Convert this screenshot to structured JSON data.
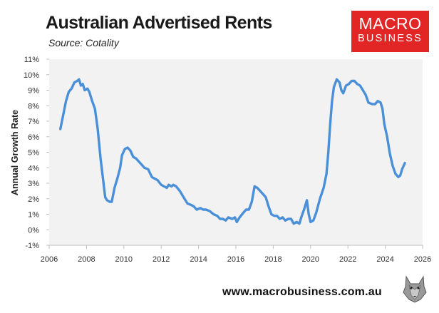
{
  "header": {
    "title": "Australian Advertised Rents",
    "source": "Source: Cotality"
  },
  "logo": {
    "line1": "MACRO",
    "line2": "BUSINESS",
    "color": "#e22626"
  },
  "footer": {
    "url": "www.macrobusiness.com.au",
    "emblem": "wolf-emblem-icon"
  },
  "colors": {
    "line": "#4a90d9",
    "plot_background": "#f2f2f2",
    "accent": "#e22626"
  },
  "chart_data": {
    "type": "line",
    "ylabel": "Annual Growth Rate",
    "xlim": [
      2006,
      2026
    ],
    "ylim": [
      -1,
      11
    ],
    "grid": false,
    "legend": "none",
    "x_ticks": [
      2006,
      2008,
      2010,
      2012,
      2014,
      2016,
      2018,
      2020,
      2022,
      2024,
      2026
    ],
    "x_tick_labels": [
      "2006",
      "2008",
      "2010",
      "2012",
      "2014",
      "2016",
      "2018",
      "2020",
      "2022",
      "2024",
      "2026"
    ],
    "y_ticks": [
      -1,
      0,
      1,
      2,
      3,
      4,
      5,
      6,
      7,
      8,
      9,
      10,
      11
    ],
    "y_tick_labels": [
      "-1%",
      "0%",
      "1%",
      "2%",
      "3%",
      "4%",
      "5%",
      "6%",
      "7%",
      "8%",
      "9%",
      "10%",
      "11%"
    ],
    "series": [
      {
        "values": [
          [
            2006.6,
            6.5
          ],
          [
            2006.75,
            7.4
          ],
          [
            2006.9,
            8.3
          ],
          [
            2007.05,
            8.9
          ],
          [
            2007.2,
            9.1
          ],
          [
            2007.35,
            9.5
          ],
          [
            2007.5,
            9.6
          ],
          [
            2007.6,
            9.7
          ],
          [
            2007.7,
            9.3
          ],
          [
            2007.8,
            9.4
          ],
          [
            2007.9,
            9.0
          ],
          [
            2008.05,
            9.1
          ],
          [
            2008.15,
            8.9
          ],
          [
            2008.3,
            8.3
          ],
          [
            2008.45,
            7.8
          ],
          [
            2008.6,
            6.5
          ],
          [
            2008.75,
            4.6
          ],
          [
            2008.9,
            3.1
          ],
          [
            2009.0,
            2.1
          ],
          [
            2009.1,
            1.9
          ],
          [
            2009.25,
            1.8
          ],
          [
            2009.35,
            1.8
          ],
          [
            2009.5,
            2.7
          ],
          [
            2009.65,
            3.3
          ],
          [
            2009.8,
            4.0
          ],
          [
            2009.9,
            4.8
          ],
          [
            2010.05,
            5.2
          ],
          [
            2010.2,
            5.3
          ],
          [
            2010.35,
            5.1
          ],
          [
            2010.5,
            4.7
          ],
          [
            2010.65,
            4.6
          ],
          [
            2010.8,
            4.4
          ],
          [
            2010.95,
            4.2
          ],
          [
            2011.1,
            4.0
          ],
          [
            2011.3,
            3.9
          ],
          [
            2011.5,
            3.4
          ],
          [
            2011.65,
            3.3
          ],
          [
            2011.8,
            3.2
          ],
          [
            2012.0,
            2.9
          ],
          [
            2012.15,
            2.8
          ],
          [
            2012.3,
            2.7
          ],
          [
            2012.4,
            2.9
          ],
          [
            2012.55,
            2.8
          ],
          [
            2012.65,
            2.9
          ],
          [
            2012.8,
            2.8
          ],
          [
            2013.0,
            2.5
          ],
          [
            2013.2,
            2.1
          ],
          [
            2013.4,
            1.7
          ],
          [
            2013.6,
            1.6
          ],
          [
            2013.75,
            1.5
          ],
          [
            2013.9,
            1.3
          ],
          [
            2014.1,
            1.4
          ],
          [
            2014.25,
            1.3
          ],
          [
            2014.4,
            1.3
          ],
          [
            2014.6,
            1.2
          ],
          [
            2014.8,
            1.0
          ],
          [
            2015.0,
            0.9
          ],
          [
            2015.15,
            0.7
          ],
          [
            2015.3,
            0.7
          ],
          [
            2015.45,
            0.6
          ],
          [
            2015.6,
            0.8
          ],
          [
            2015.8,
            0.7
          ],
          [
            2015.95,
            0.8
          ],
          [
            2016.05,
            0.5
          ],
          [
            2016.2,
            0.8
          ],
          [
            2016.4,
            1.1
          ],
          [
            2016.55,
            1.3
          ],
          [
            2016.7,
            1.3
          ],
          [
            2016.85,
            1.8
          ],
          [
            2017.0,
            2.8
          ],
          [
            2017.15,
            2.7
          ],
          [
            2017.3,
            2.5
          ],
          [
            2017.45,
            2.3
          ],
          [
            2017.6,
            2.1
          ],
          [
            2017.75,
            1.5
          ],
          [
            2017.9,
            1.0
          ],
          [
            2018.05,
            0.9
          ],
          [
            2018.2,
            0.9
          ],
          [
            2018.35,
            0.7
          ],
          [
            2018.5,
            0.8
          ],
          [
            2018.65,
            0.6
          ],
          [
            2018.8,
            0.7
          ],
          [
            2018.95,
            0.7
          ],
          [
            2019.1,
            0.4
          ],
          [
            2019.25,
            0.5
          ],
          [
            2019.4,
            0.4
          ],
          [
            2019.5,
            0.8
          ],
          [
            2019.65,
            1.3
          ],
          [
            2019.8,
            1.9
          ],
          [
            2019.9,
            1.0
          ],
          [
            2020.0,
            0.5
          ],
          [
            2020.15,
            0.6
          ],
          [
            2020.3,
            1.1
          ],
          [
            2020.5,
            2.0
          ],
          [
            2020.7,
            2.7
          ],
          [
            2020.85,
            3.6
          ],
          [
            2020.95,
            5.0
          ],
          [
            2021.05,
            6.8
          ],
          [
            2021.15,
            8.3
          ],
          [
            2021.25,
            9.2
          ],
          [
            2021.4,
            9.7
          ],
          [
            2021.55,
            9.5
          ],
          [
            2021.65,
            9.0
          ],
          [
            2021.75,
            8.8
          ],
          [
            2021.9,
            9.3
          ],
          [
            2022.05,
            9.4
          ],
          [
            2022.2,
            9.6
          ],
          [
            2022.35,
            9.6
          ],
          [
            2022.5,
            9.4
          ],
          [
            2022.65,
            9.3
          ],
          [
            2022.8,
            9.0
          ],
          [
            2022.95,
            8.7
          ],
          [
            2023.1,
            8.2
          ],
          [
            2023.3,
            8.1
          ],
          [
            2023.45,
            8.1
          ],
          [
            2023.6,
            8.3
          ],
          [
            2023.75,
            8.2
          ],
          [
            2023.85,
            7.8
          ],
          [
            2023.95,
            6.8
          ],
          [
            2024.1,
            6.0
          ],
          [
            2024.25,
            4.9
          ],
          [
            2024.4,
            4.1
          ],
          [
            2024.55,
            3.6
          ],
          [
            2024.7,
            3.4
          ],
          [
            2024.8,
            3.5
          ],
          [
            2024.9,
            3.9
          ],
          [
            2025.05,
            4.3
          ]
        ]
      }
    ]
  }
}
